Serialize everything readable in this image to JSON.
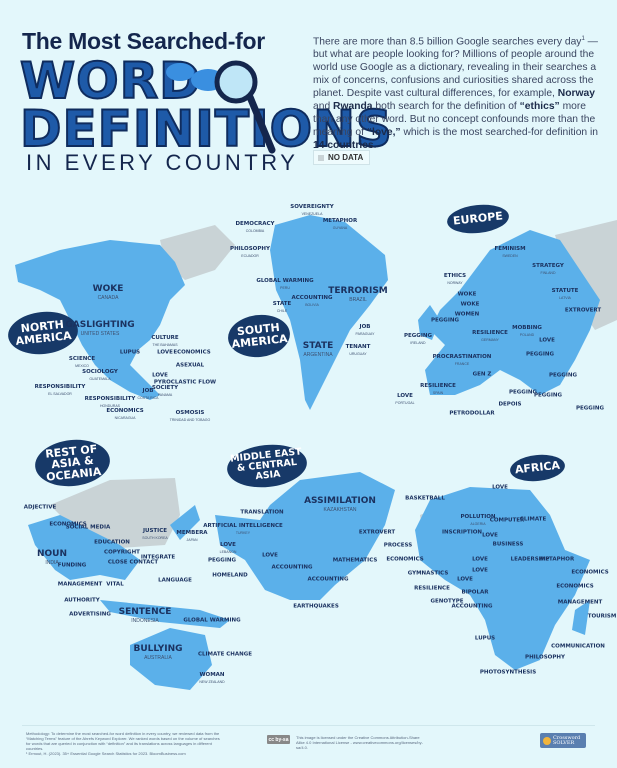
{
  "header": {
    "title_line1": "The Most Searched-for",
    "title_line2": "WORD",
    "title_line3": "DEFINITIONS",
    "title_line4": "IN EVERY COUNTRY"
  },
  "intro": {
    "p1": "There are more than 8.5 billion Google searches every day",
    "sup": "1",
    "p2": " — but what are people looking for? Millions of people around the world use Google as a dictionary, revealing in their searches a mix of concerns, confusions and curiosities shared across the planet. Despite vast cultural differences, for example, ",
    "b1": "Norway",
    "p3": " and ",
    "b2": "Rwanda",
    "p4": " both search for the definition of ",
    "b3": "“ethics”",
    "p5": " more than any other word. But no concept confounds more than the meaning of ",
    "b4": "“love,”",
    "p6": " which is the most searched-for definition in ",
    "b5": "14 countries",
    "p7": "."
  },
  "legend": {
    "no_data": "NO DATA"
  },
  "colors": {
    "land": "#5bb0ea",
    "no_data": "#c9d3d6",
    "background": "#e3f7fb",
    "bubble": "#173968",
    "title": "#1e5aa8"
  },
  "regions": {
    "north_america": "NORTH AMERICA",
    "south_america": "SOUTH AMERICA",
    "europe": "EUROPE",
    "asia_oceania": "REST OF ASIA & OCEANIA",
    "middle_east": "MIDDLE EAST & CENTRAL ASIA",
    "africa": "AFRICA"
  },
  "labels": [
    {
      "word": "WOKE",
      "country": "CANADA"
    },
    {
      "word": "GASLIGHTING",
      "country": "UNITED STATES"
    },
    {
      "word": "SCIENCE",
      "country": "MEXICO"
    },
    {
      "word": "SOCIOLOGY",
      "country": "GUATEMALA"
    },
    {
      "word": "RESPONSIBILITY",
      "country": "EL SALVADOR"
    },
    {
      "word": "RESPONSIBILITY",
      "country": "HONDURAS"
    },
    {
      "word": "ECONOMICS",
      "country": "NICARAGUA"
    },
    {
      "word": "JOB",
      "country": "COSTA RICA"
    },
    {
      "word": "SOCIETY",
      "country": "PANAMA"
    },
    {
      "word": "LUPUS",
      "country": ""
    },
    {
      "word": "CULTURE",
      "country": "THE BAHAMAS"
    },
    {
      "word": "LOVE",
      "country": ""
    },
    {
      "word": "ECONOMICS",
      "country": ""
    },
    {
      "word": "ASEXUAL",
      "country": ""
    },
    {
      "word": "LOVE",
      "country": ""
    },
    {
      "word": "PYROCLASTIC FLOW",
      "country": ""
    },
    {
      "word": "OSMOSIS",
      "country": "TRINIDAD AND TOBAGO"
    },
    {
      "word": "SOVEREIGNTY",
      "country": "VENEZUELA"
    },
    {
      "word": "DEMOCRACY",
      "country": "COLOMBIA"
    },
    {
      "word": "METAPHOR",
      "country": "GUYANA"
    },
    {
      "word": "PHILOSOPHY",
      "country": "ECUADOR"
    },
    {
      "word": "GLOBAL WARMING",
      "country": "PERU"
    },
    {
      "word": "TERRORISM",
      "country": "BRAZIL"
    },
    {
      "word": "ACCOUNTING",
      "country": "BOLIVIA"
    },
    {
      "word": "STATE",
      "country": "CHILE"
    },
    {
      "word": "JOB",
      "country": "PARAGUAY"
    },
    {
      "word": "STATE",
      "country": "ARGENTINA"
    },
    {
      "word": "TENANT",
      "country": "URUGUAY"
    },
    {
      "word": "FEMINISM",
      "country": "SWEDEN"
    },
    {
      "word": "ETHICS",
      "country": "NORWAY"
    },
    {
      "word": "STRATEGY",
      "country": "FINLAND"
    },
    {
      "word": "WOKE",
      "country": ""
    },
    {
      "word": "WOKE",
      "country": ""
    },
    {
      "word": "STATUTE",
      "country": "LATVIA"
    },
    {
      "word": "EXTROVERT",
      "country": ""
    },
    {
      "word": "WOMEN",
      "country": ""
    },
    {
      "word": "PEGGING",
      "country": ""
    },
    {
      "word": "PEGGING",
      "country": "IRELAND"
    },
    {
      "word": "RESILIENCE",
      "country": "GERMANY"
    },
    {
      "word": "MOBBING",
      "country": "POLAND"
    },
    {
      "word": "LOVE",
      "country": ""
    },
    {
      "word": "PROCRASTINATION",
      "country": "FRANCE"
    },
    {
      "word": "PEGGING",
      "country": ""
    },
    {
      "word": "GEN Z",
      "country": ""
    },
    {
      "word": "PEGGING",
      "country": ""
    },
    {
      "word": "RESILIENCE",
      "country": "SPAIN"
    },
    {
      "word": "LOVE",
      "country": "PORTUGAL"
    },
    {
      "word": "PEGGING",
      "country": ""
    },
    {
      "word": "PEGGING",
      "country": ""
    },
    {
      "word": "DEPOIS",
      "country": ""
    },
    {
      "word": "PETRODOLLAR",
      "country": ""
    },
    {
      "word": "PEGGING",
      "country": ""
    },
    {
      "word": "ADJECTIVE",
      "country": ""
    },
    {
      "word": "ECONOMICS",
      "country": ""
    },
    {
      "word": "SOCIAL MEDIA",
      "country": ""
    },
    {
      "word": "NOUN",
      "country": "INDIA"
    },
    {
      "word": "EDUCATION",
      "country": ""
    },
    {
      "word": "COPYRIGHT",
      "country": ""
    },
    {
      "word": "CLOSE CONTACT",
      "country": ""
    },
    {
      "word": "FUNDING",
      "country": ""
    },
    {
      "word": "MANAGEMENT",
      "country": ""
    },
    {
      "word": "VITAL",
      "country": ""
    },
    {
      "word": "INTEGRATE",
      "country": ""
    },
    {
      "word": "LANGUAGE",
      "country": ""
    },
    {
      "word": "AUTHORITY",
      "country": ""
    },
    {
      "word": "ADVERTISING",
      "country": ""
    },
    {
      "word": "SENTENCE",
      "country": "INDONESIA"
    },
    {
      "word": "JUSTICE",
      "country": "SOUTH KOREA"
    },
    {
      "word": "MEMBERA",
      "country": "JAPAN"
    },
    {
      "word": "GLOBAL WARMING",
      "country": ""
    },
    {
      "word": "BULLYING",
      "country": "AUSTRALIA"
    },
    {
      "word": "CLIMATE CHANGE",
      "country": ""
    },
    {
      "word": "WOMAN",
      "country": "NEW ZEALAND"
    },
    {
      "word": "ASSIMILATION",
      "country": "KAZAKHSTAN"
    },
    {
      "word": "TRANSLATION",
      "country": ""
    },
    {
      "word": "ARTIFICIAL INTELLIGENCE",
      "country": "TURKEY"
    },
    {
      "word": "EXTROVERT",
      "country": ""
    },
    {
      "word": "LOVE",
      "country": "LEBANON"
    },
    {
      "word": "PEGGING",
      "country": ""
    },
    {
      "word": "LOVE",
      "country": ""
    },
    {
      "word": "HOMELAND",
      "country": ""
    },
    {
      "word": "ACCOUNTING",
      "country": ""
    },
    {
      "word": "MATHEMATICS",
      "country": ""
    },
    {
      "word": "ACCOUNTING",
      "country": ""
    },
    {
      "word": "EARTHQUAKES",
      "country": ""
    },
    {
      "word": "BASKETBALL",
      "country": ""
    },
    {
      "word": "LOVE",
      "country": ""
    },
    {
      "word": "POLLUTION",
      "country": "ALGERIA"
    },
    {
      "word": "COMPUTER",
      "country": ""
    },
    {
      "word": "CLIMATE",
      "country": ""
    },
    {
      "word": "INSCRIPTION",
      "country": ""
    },
    {
      "word": "LOVE",
      "country": ""
    },
    {
      "word": "BUSINESS",
      "country": ""
    },
    {
      "word": "PROCESS",
      "country": ""
    },
    {
      "word": "ECONOMICS",
      "country": ""
    },
    {
      "word": "LOVE",
      "country": ""
    },
    {
      "word": "LEADERSHIP",
      "country": ""
    },
    {
      "word": "METAPHOR",
      "country": ""
    },
    {
      "word": "GYMNASTICS",
      "country": ""
    },
    {
      "word": "LOVE",
      "country": ""
    },
    {
      "word": "LOVE",
      "country": ""
    },
    {
      "word": "ECONOMICS",
      "country": ""
    },
    {
      "word": "RESILIENCE",
      "country": ""
    },
    {
      "word": "BIPOLAR",
      "country": ""
    },
    {
      "word": "ECONOMICS",
      "country": ""
    },
    {
      "word": "GENOTYPE",
      "country": ""
    },
    {
      "word": "ACCOUNTING",
      "country": ""
    },
    {
      "word": "MANAGEMENT",
      "country": ""
    },
    {
      "word": "TOURISM",
      "country": ""
    },
    {
      "word": "LUPUS",
      "country": ""
    },
    {
      "word": "COMMUNICATION",
      "country": ""
    },
    {
      "word": "PHILOSOPHY",
      "country": ""
    },
    {
      "word": "PHOTOSYNTHESIS",
      "country": ""
    }
  ],
  "footer": {
    "methodology": "Methodology: To determine the most searched-for word definition in every country, we reviewed data from the “Matching Terms” feature of the Ahrefs Keyword Explorer. We ranked words based on the volume of searches for words that are queried in conjunction with “definition” and its translations across languages in different countries.",
    "source": "¹ Ermout, H. (2023). 35+ Essential Google Search Statistics for 2023. BloomBusiness.com",
    "license_badge": "cc by-sa",
    "license": "This image is licensed under the Creative Commons Attribution-Share Alike 4.0 International License - www.creativecommons.org/licenses/by-sa/4.0.",
    "logo_line1": "Crossword",
    "logo_line2": "SOLVER"
  }
}
